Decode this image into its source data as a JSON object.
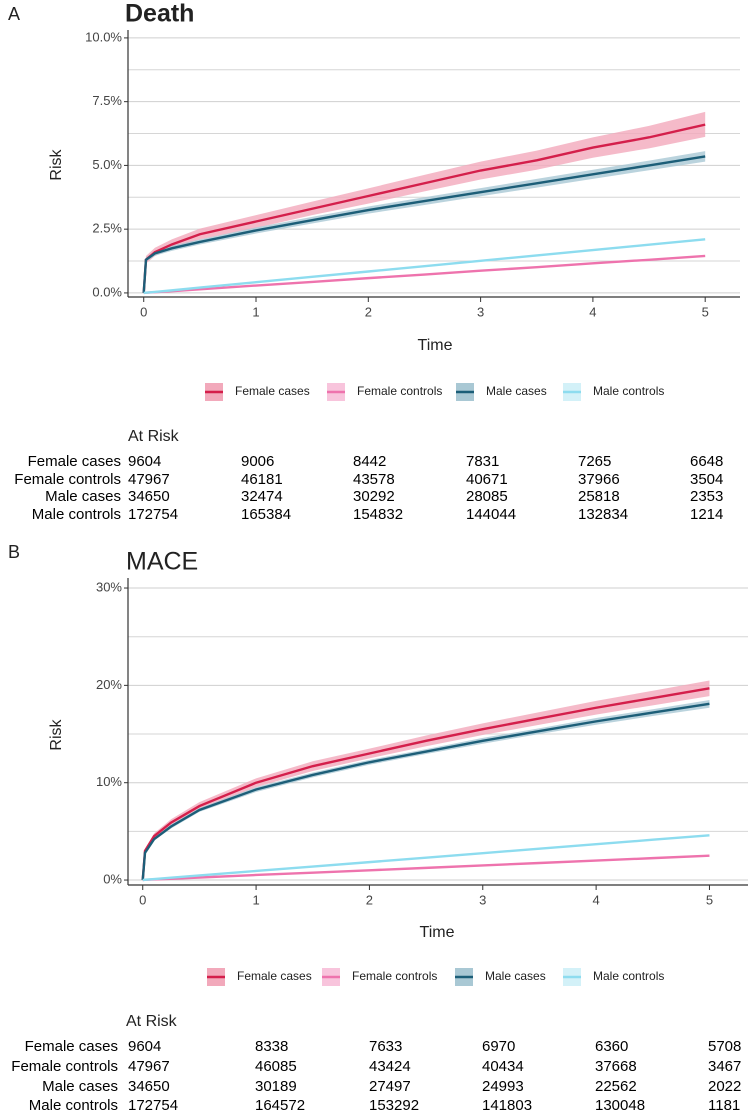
{
  "chart_data": [
    {
      "type": "line",
      "panel_label": "A",
      "title": "Death",
      "title_bold": true,
      "x_label": "Time",
      "y_label": "Risk",
      "xlim": [
        -0.14,
        5.31
      ],
      "xticks": [
        0,
        1,
        2,
        3,
        4,
        5
      ],
      "ylim": [
        -0.16,
        10.31
      ],
      "yticks": [
        {
          "value": 0,
          "label": "0.0%"
        },
        {
          "value": 2.5,
          "label": "2.5%"
        },
        {
          "value": 5,
          "label": "5.0%"
        },
        {
          "value": 7.5,
          "label": "7.5%"
        },
        {
          "value": 10,
          "label": "10.0%"
        }
      ],
      "minor_yticks": [
        1.25,
        3.75,
        6.25,
        8.75
      ],
      "grid": true,
      "legend_position": "bottom",
      "x": [
        0,
        0.02,
        0.1,
        0.25,
        0.5,
        1,
        1.5,
        2,
        2.5,
        3,
        3.5,
        4,
        4.5,
        5
      ],
      "series": [
        {
          "name": "Female cases",
          "color": "#d41f4b",
          "band_color": "#f2a9bb",
          "values": [
            0,
            1.3,
            1.6,
            1.9,
            2.3,
            2.8,
            3.3,
            3.8,
            4.3,
            4.8,
            5.2,
            5.7,
            6.1,
            6.6
          ],
          "lower": [
            0,
            1.15,
            1.45,
            1.72,
            2.1,
            2.55,
            3.05,
            3.5,
            3.98,
            4.45,
            4.83,
            5.3,
            5.67,
            6.12
          ],
          "upper": [
            0,
            1.45,
            1.77,
            2.1,
            2.52,
            3.05,
            3.58,
            4.1,
            4.63,
            5.15,
            5.58,
            6.1,
            6.55,
            7.1
          ]
        },
        {
          "name": "Female controls",
          "color": "#ee73ad",
          "band_color": "#f8c4dc",
          "values": [
            0,
            0.01,
            0.03,
            0.07,
            0.14,
            0.29,
            0.43,
            0.58,
            0.72,
            0.87,
            1.01,
            1.16,
            1.3,
            1.45
          ]
        },
        {
          "name": "Male cases",
          "color": "#1c5e78",
          "band_color": "#a9c8d4",
          "values": [
            0,
            1.3,
            1.55,
            1.75,
            2.0,
            2.45,
            2.85,
            3.25,
            3.6,
            3.95,
            4.3,
            4.65,
            5.0,
            5.35
          ],
          "lower": [
            0,
            1.22,
            1.46,
            1.65,
            1.9,
            2.33,
            2.72,
            3.11,
            3.45,
            3.79,
            4.13,
            4.47,
            4.81,
            5.15
          ],
          "upper": [
            0,
            1.38,
            1.64,
            1.85,
            2.1,
            2.57,
            2.98,
            3.39,
            3.75,
            4.11,
            4.47,
            4.83,
            5.19,
            5.56
          ]
        },
        {
          "name": "Male controls",
          "color": "#8ddcef",
          "band_color": "#d3f1f8",
          "values": [
            0,
            0.01,
            0.04,
            0.1,
            0.21,
            0.42,
            0.63,
            0.84,
            1.05,
            1.26,
            1.47,
            1.68,
            1.89,
            2.1
          ]
        }
      ],
      "at_risk": {
        "title": "At Risk",
        "rows": [
          {
            "label": "Female cases",
            "values": [
              9604,
              9006,
              8442,
              7831,
              7265,
              6648
            ]
          },
          {
            "label": "Female controls",
            "values": [
              47967,
              46181,
              43578,
              40671,
              37966,
              "3504"
            ]
          },
          {
            "label": "Male cases",
            "values": [
              34650,
              32474,
              30292,
              28085,
              25818,
              "2353"
            ]
          },
          {
            "label": "Male controls",
            "values": [
              172754,
              165384,
              154832,
              144044,
              132834,
              "1214"
            ]
          }
        ]
      }
    },
    {
      "type": "line",
      "panel_label": "B",
      "title": "MACE",
      "title_bold": false,
      "x_label": "Time",
      "y_label": "Risk",
      "xlim": [
        -0.13,
        5.34
      ],
      "xticks": [
        0,
        1,
        2,
        3,
        4,
        5
      ],
      "ylim": [
        -0.51,
        31.03
      ],
      "yticks": [
        {
          "value": 0,
          "label": "0%"
        },
        {
          "value": 10,
          "label": "10%"
        },
        {
          "value": 20,
          "label": "20%"
        },
        {
          "value": 30,
          "label": "30%"
        }
      ],
      "minor_yticks": [
        5,
        15,
        25
      ],
      "grid": true,
      "legend_position": "bottom",
      "x": [
        0,
        0.02,
        0.1,
        0.25,
        0.5,
        1,
        1.5,
        2,
        2.5,
        3,
        3.5,
        4,
        4.5,
        5
      ],
      "series": [
        {
          "name": "Female cases",
          "color": "#d41f4b",
          "band_color": "#f2a9bb",
          "values": [
            0,
            3.0,
            4.5,
            5.9,
            7.6,
            10.0,
            11.7,
            13.0,
            14.3,
            15.5,
            16.6,
            17.7,
            18.7,
            19.7
          ],
          "lower": [
            0,
            2.8,
            4.2,
            5.55,
            7.2,
            9.55,
            11.2,
            12.5,
            13.75,
            14.9,
            15.95,
            17.0,
            17.95,
            18.9
          ],
          "upper": [
            0,
            3.2,
            4.8,
            6.25,
            8.0,
            10.45,
            12.2,
            13.5,
            14.85,
            16.1,
            17.25,
            18.4,
            19.45,
            20.5
          ]
        },
        {
          "name": "Female controls",
          "color": "#ee73ad",
          "band_color": "#f8c4dc",
          "values": [
            0,
            0.02,
            0.06,
            0.13,
            0.26,
            0.52,
            0.76,
            1.0,
            1.25,
            1.5,
            1.75,
            2.0,
            2.25,
            2.5
          ]
        },
        {
          "name": "Male cases",
          "color": "#1c5e78",
          "band_color": "#a9c8d4",
          "values": [
            0,
            2.8,
            4.2,
            5.5,
            7.2,
            9.3,
            10.8,
            12.1,
            13.2,
            14.3,
            15.3,
            16.3,
            17.2,
            18.1
          ],
          "lower": [
            0,
            2.7,
            4.05,
            5.3,
            7.0,
            9.05,
            10.55,
            11.85,
            12.95,
            14.0,
            15.0,
            15.95,
            16.85,
            17.7
          ],
          "upper": [
            0,
            2.9,
            4.35,
            5.7,
            7.4,
            9.55,
            11.05,
            12.35,
            13.45,
            14.6,
            15.6,
            16.65,
            17.55,
            18.5
          ]
        },
        {
          "name": "Male controls",
          "color": "#8ddcef",
          "band_color": "#d3f1f8",
          "values": [
            0,
            0.03,
            0.1,
            0.24,
            0.47,
            0.93,
            1.38,
            1.84,
            2.3,
            2.76,
            3.22,
            3.68,
            4.14,
            4.6
          ]
        }
      ],
      "at_risk": {
        "title": "At Risk",
        "rows": [
          {
            "label": "Female cases",
            "values": [
              9604,
              8338,
              7633,
              6970,
              6360,
              5708
            ]
          },
          {
            "label": "Female controls",
            "values": [
              47967,
              46085,
              43424,
              40434,
              37668,
              "3467"
            ]
          },
          {
            "label": "Male cases",
            "values": [
              34650,
              30189,
              27497,
              24993,
              22562,
              "2022"
            ]
          },
          {
            "label": "Male controls",
            "values": [
              172754,
              164572,
              153292,
              141803,
              130048,
              "1181"
            ]
          }
        ]
      }
    }
  ]
}
